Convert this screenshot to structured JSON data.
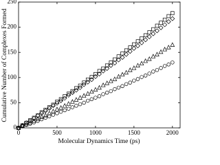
{
  "chart_data": {
    "type": "scatter",
    "xlabel": "Molecular Dynamics Time (ps)",
    "ylabel": "Cumulative Number of Complexes Formed",
    "xlim": [
      0,
      2100
    ],
    "ylim": [
      0,
      250
    ],
    "xticks": [
      0,
      500,
      1000,
      1500,
      2000
    ],
    "yticks": [
      0,
      50,
      100,
      150,
      200,
      250
    ],
    "x": [
      0,
      50,
      100,
      150,
      200,
      250,
      300,
      350,
      400,
      450,
      500,
      550,
      600,
      650,
      700,
      750,
      800,
      850,
      900,
      950,
      1000,
      1050,
      1100,
      1150,
      1200,
      1250,
      1300,
      1350,
      1400,
      1450,
      1500,
      1550,
      1600,
      1650,
      1700,
      1750,
      1800,
      1850,
      1900,
      1950,
      2000
    ],
    "series": [
      {
        "marker": "square",
        "color": "#000000",
        "values": [
          0,
          5,
          10,
          15,
          20,
          25,
          31,
          36,
          41,
          46,
          52,
          57,
          63,
          68,
          73,
          79,
          84,
          90,
          96,
          101,
          107,
          113,
          118,
          124,
          130,
          136,
          142,
          148,
          154,
          160,
          166,
          172,
          178,
          184,
          190,
          196,
          203,
          209,
          215,
          222,
          228
        ]
      },
      {
        "marker": "diamond",
        "color": "#000000",
        "values": [
          0,
          5,
          10,
          14,
          19,
          24,
          29,
          34,
          39,
          44,
          49,
          54,
          59,
          65,
          70,
          75,
          80,
          86,
          91,
          96,
          102,
          107,
          113,
          118,
          124,
          129,
          135,
          140,
          146,
          152,
          158,
          163,
          169,
          175,
          181,
          187,
          193,
          199,
          205,
          211,
          217
        ]
      },
      {
        "marker": "triangle",
        "color": "#000000",
        "values": [
          0,
          4,
          7,
          11,
          14,
          18,
          22,
          25,
          29,
          33,
          37,
          40,
          44,
          48,
          52,
          56,
          60,
          64,
          68,
          72,
          76,
          80,
          85,
          89,
          93,
          97,
          102,
          106,
          110,
          115,
          119,
          124,
          128,
          133,
          137,
          142,
          146,
          151,
          156,
          160,
          165
        ]
      },
      {
        "marker": "circle",
        "color": "#000000",
        "values": [
          0,
          3,
          6,
          8,
          11,
          14,
          17,
          20,
          23,
          26,
          29,
          32,
          35,
          38,
          41,
          44,
          47,
          50,
          54,
          57,
          60,
          63,
          67,
          70,
          73,
          77,
          80,
          83,
          87,
          90,
          94,
          97,
          101,
          104,
          108,
          112,
          115,
          119,
          123,
          126,
          130
        ]
      }
    ]
  }
}
